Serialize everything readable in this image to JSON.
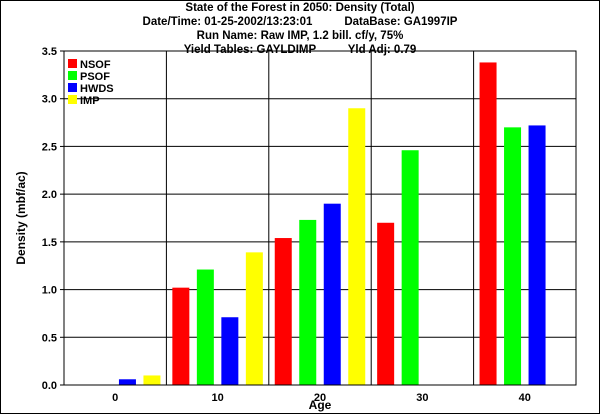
{
  "chart_data": {
    "type": "bar",
    "title": "State of the Forest in 2050: Density (Total)",
    "subtitle_lines": [
      "Date/Time: 01-25-2002/13:23:01          DataBase: GA1997IP",
      "Run Name: Raw IMP, 1.2 bill. cf/y, 75%",
      "Yield Tables: GAYLDIMP          Yld Adj: 0.79"
    ],
    "xlabel": "Age",
    "ylabel": "Density (mbf/ac)",
    "categories": [
      "0",
      "10",
      "20",
      "30",
      "40"
    ],
    "ylim": [
      0,
      3.5
    ],
    "yticks": [
      "0.0",
      "0.5",
      "1.0",
      "1.5",
      "2.0",
      "2.5",
      "3.0",
      "3.5"
    ],
    "grid": true,
    "legend_position": "top-left",
    "series": [
      {
        "name": "NSOF",
        "color": "#ff0000",
        "values": [
          0,
          1.02,
          1.54,
          1.7,
          3.38
        ]
      },
      {
        "name": "PSOF",
        "color": "#00ff00",
        "values": [
          0,
          1.21,
          1.73,
          2.46,
          2.7
        ]
      },
      {
        "name": "HWDS",
        "color": "#0000ff",
        "values": [
          0.06,
          0.71,
          1.9,
          0,
          2.72
        ]
      },
      {
        "name": "IMP",
        "color": "#ffff00",
        "values": [
          0.1,
          1.39,
          2.9,
          0,
          0
        ]
      }
    ]
  }
}
